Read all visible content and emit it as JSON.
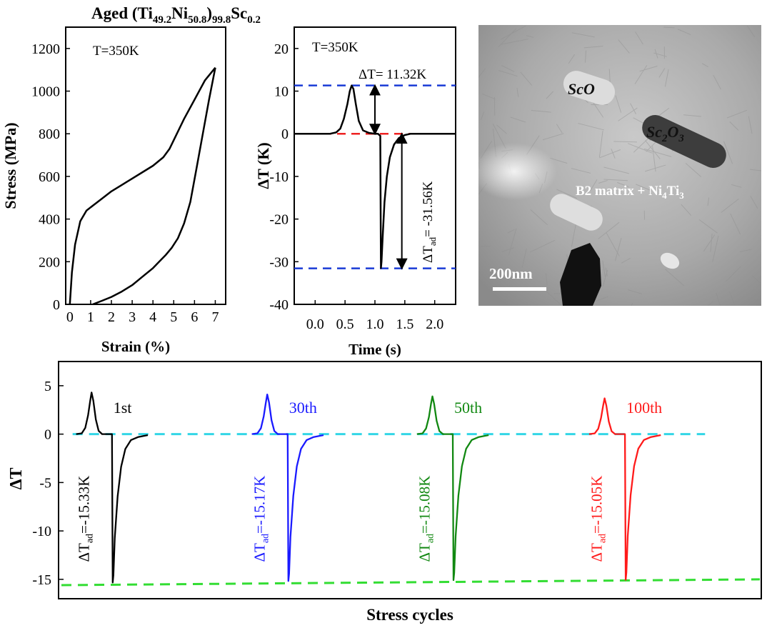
{
  "figure_title": {
    "base": "Aged (Ti",
    "sub1": "49.2",
    "mid1": "Ni",
    "sub2": "50.8",
    "mid2": ")",
    "sub3": "99.8",
    "mid3": "Sc",
    "sub4": "0.2"
  },
  "colors": {
    "black": "#000000",
    "blue": "#1a1aff",
    "green": "#118811",
    "red": "#ff1a1a",
    "cyan": "#33d6e6",
    "lime": "#33dd33",
    "dashBlue": "#1a3bd6",
    "dashRed": "#ee2222"
  },
  "tem": {
    "labels": [
      {
        "text": "ScO"
      },
      {
        "text": "Sc2O3",
        "base1": "Sc",
        "sub1": "2",
        "base2": "O",
        "sub2": "3"
      },
      {
        "text": "B2 matrix + Ni4Ti3",
        "base1": "B2 matrix + Ni",
        "sub1": "4",
        "base2": "Ti",
        "sub2": "3"
      }
    ],
    "scale_bar": "200nm"
  },
  "chart_data": [
    {
      "id": "stress-strain",
      "type": "line",
      "annotation": "T=350K",
      "xlabel": "Strain (%)",
      "ylabel": "Stress (MPa)",
      "xlim": [
        -0.2,
        7.5
      ],
      "ylim": [
        0,
        1300
      ],
      "xticks": [
        0,
        1,
        2,
        3,
        4,
        5,
        6,
        7
      ],
      "yticks": [
        0,
        200,
        400,
        600,
        800,
        1000,
        1200
      ],
      "series": [
        {
          "name": "loading",
          "x": [
            0,
            0.1,
            0.25,
            0.5,
            0.8,
            1.2,
            1.6,
            2.0,
            2.5,
            3.0,
            3.5,
            4.0,
            4.5,
            4.8,
            5.1,
            5.5,
            6.0,
            6.5,
            7.0
          ],
          "y": [
            0,
            150,
            280,
            390,
            440,
            470,
            500,
            530,
            560,
            590,
            620,
            650,
            690,
            730,
            790,
            870,
            960,
            1050,
            1110
          ]
        },
        {
          "name": "unloading",
          "x": [
            7.0,
            6.7,
            6.4,
            6.1,
            5.8,
            5.5,
            5.2,
            4.9,
            4.6,
            4.3,
            4.0,
            3.5,
            3.0,
            2.5,
            2.0,
            1.5,
            1.1
          ],
          "y": [
            1110,
            960,
            800,
            640,
            480,
            380,
            310,
            265,
            230,
            200,
            170,
            130,
            90,
            60,
            35,
            15,
            0
          ]
        }
      ]
    },
    {
      "id": "dT-time",
      "type": "line",
      "annotation": "T=350K",
      "xlabel": "Time (s)",
      "ylabel": "ΔT (K)",
      "xlim": [
        -0.35,
        2.35
      ],
      "ylim": [
        -40,
        25
      ],
      "xticks": [
        0.0,
        0.5,
        1.0,
        1.5,
        2.0
      ],
      "xtick_labels": [
        "0.0",
        "0.5",
        "1.0",
        "1.5",
        "2.0"
      ],
      "yticks": [
        -40,
        -30,
        -20,
        -10,
        0,
        10,
        20
      ],
      "reference_lines": {
        "upper": 11.32,
        "zero": 0,
        "lower": -31.56
      },
      "labels": {
        "heating": "ΔT= 11.32K",
        "cooling_prefix": "ΔT",
        "cooling_sub": "ad",
        "cooling_value": "= -31.56K"
      },
      "series": [
        {
          "name": "ΔT",
          "x": [
            -0.35,
            0.25,
            0.35,
            0.42,
            0.48,
            0.54,
            0.58,
            0.61,
            0.64,
            0.68,
            0.73,
            0.8,
            0.9,
            1.0,
            1.05,
            1.09,
            1.1,
            1.11,
            1.13,
            1.16,
            1.2,
            1.25,
            1.32,
            1.4,
            1.5,
            1.6,
            1.8,
            2.0,
            2.35
          ],
          "y": [
            0,
            0,
            0.3,
            1.2,
            3.5,
            7,
            10,
            11.3,
            10.5,
            7,
            3,
            0.8,
            0.2,
            0,
            0,
            -0.5,
            -31.5,
            -30,
            -24,
            -16,
            -10,
            -5.5,
            -2.5,
            -1,
            -0.3,
            0,
            0,
            0,
            0
          ]
        }
      ]
    },
    {
      "id": "cycles",
      "type": "line",
      "xlabel": "Stress cycles",
      "ylabel": "ΔT",
      "xlim": [
        0,
        100
      ],
      "ylim": [
        -17,
        7.5
      ],
      "yticks": [
        -15,
        -10,
        -5,
        0,
        5
      ],
      "baseline": {
        "start": 0,
        "end": 0
      },
      "bottom_line": {
        "start": -15.6,
        "end": -15.0
      },
      "series": [
        {
          "name": "1st",
          "label": "1st",
          "color": "#000000",
          "x0": 4.5,
          "peak": 4.3,
          "min": -15.33,
          "prefix": "ΔT",
          "sub": "ad",
          "value": "=-15.33K"
        },
        {
          "name": "30th",
          "label": "30th",
          "color": "#1a1aff",
          "x0": 29.5,
          "peak": 4.1,
          "min": -15.17,
          "prefix": "ΔT",
          "sub": "ad",
          "value": "=-15.17K"
        },
        {
          "name": "50th",
          "label": "50th",
          "color": "#118811",
          "x0": 53.0,
          "peak": 3.9,
          "min": -15.08,
          "prefix": "ΔT",
          "sub": "ad",
          "value": "=-15.08K"
        },
        {
          "name": "100th",
          "label": "100th",
          "color": "#ff1a1a",
          "x0": 77.5,
          "peak": 3.7,
          "min": -15.05,
          "prefix": "ΔT",
          "sub": "ad",
          "value": "=-15.05K"
        }
      ]
    }
  ]
}
